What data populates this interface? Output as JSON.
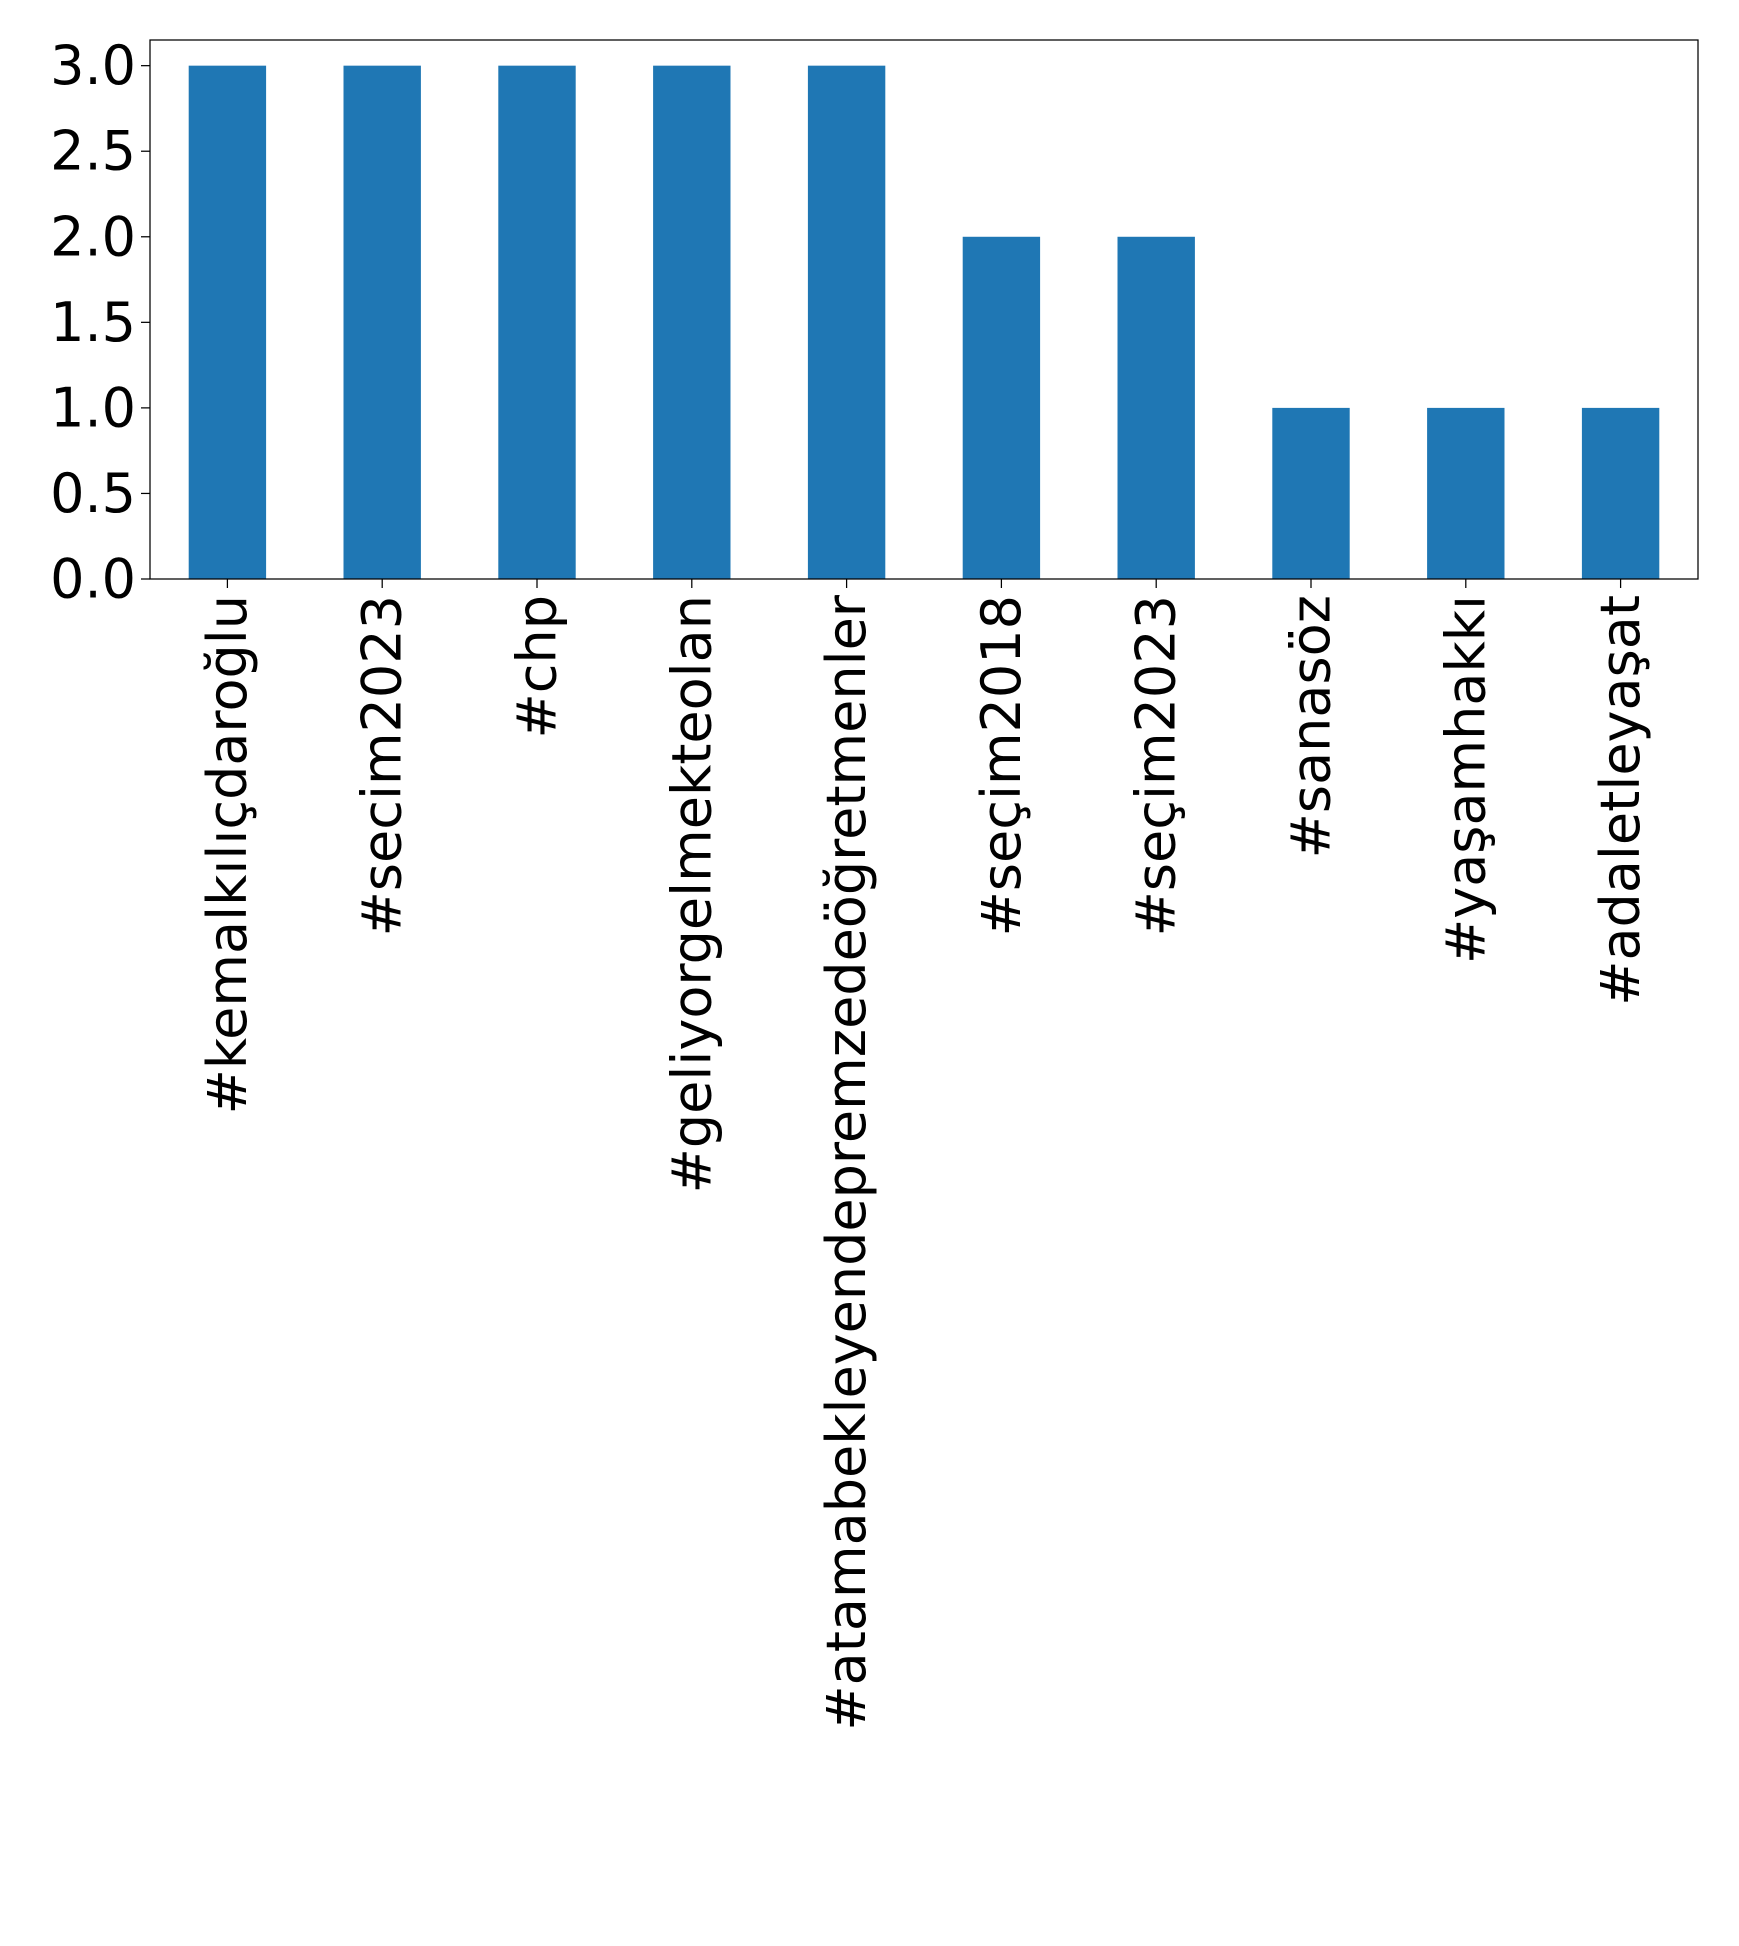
{
  "chart_data": {
    "type": "bar",
    "title": "",
    "xlabel": "",
    "ylabel": "",
    "categories": [
      "#kemalkılıçdaroğlu",
      "#secim2023",
      "#chp",
      "#geliyorgelmekteolan",
      "#atamabekleyendepremzedeöğretmenler",
      "#seçim2018",
      "#seçim2023",
      "#sanasöz",
      "#yaşamhakkı",
      "#adaletleyaşat"
    ],
    "values": [
      3,
      3,
      3,
      3,
      3,
      2,
      2,
      1,
      1,
      1
    ],
    "ylim": [
      0,
      3.15
    ],
    "yticks": [
      0.0,
      0.5,
      1.0,
      1.5,
      2.0,
      2.5,
      3.0
    ],
    "ytick_labels": [
      "0.0",
      "0.5",
      "1.0",
      "1.5",
      "2.0",
      "2.5",
      "3.0"
    ],
    "bar_color": "#1f77b4",
    "grid": false,
    "legend": "none"
  }
}
